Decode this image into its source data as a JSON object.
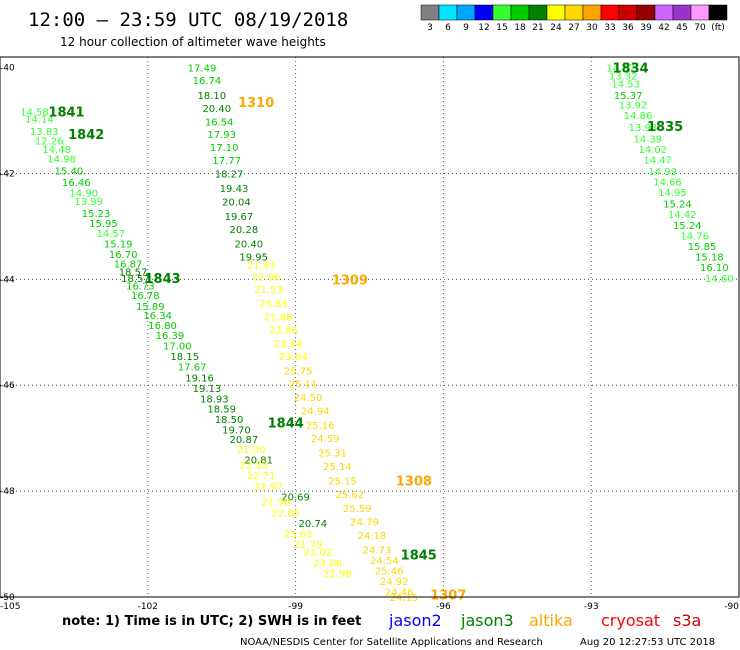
{
  "header": {
    "title": "12:00 — 23:59 UTC 08/19/2018",
    "subtitle": "12 hour collection of altimeter wave heights"
  },
  "colorbar": {
    "unit": "(ft)",
    "swatches": [
      {
        "color": "#808080",
        "label": "3"
      },
      {
        "color": "#00e5ff",
        "label": "6"
      },
      {
        "color": "#00a6ff",
        "label": "9"
      },
      {
        "color": "#0000ff",
        "label": "12"
      },
      {
        "color": "#33ff33",
        "label": "15"
      },
      {
        "color": "#00cc00",
        "label": "18"
      },
      {
        "color": "#008000",
        "label": "21"
      },
      {
        "color": "#ffff00",
        "label": "24"
      },
      {
        "color": "#ffd700",
        "label": "27"
      },
      {
        "color": "#ffa500",
        "label": "30"
      },
      {
        "color": "#ff0000",
        "label": "33"
      },
      {
        "color": "#cc0000",
        "label": "36"
      },
      {
        "color": "#990000",
        "label": "39"
      },
      {
        "color": "#cc66ff",
        "label": "42"
      },
      {
        "color": "#9933cc",
        "label": "45"
      },
      {
        "color": "#ff99ff",
        "label": "70"
      },
      {
        "color": "#000000",
        "label": ""
      }
    ]
  },
  "note": "note:  1) Time is in UTC;  2) SWH is in feet",
  "satellites": [
    {
      "name": "jason2",
      "color": "#0000ff"
    },
    {
      "name": "jason3",
      "color": "#008000"
    },
    {
      "name": "altika",
      "color": "#ffa500"
    },
    {
      "name": "cryosat",
      "color": "#ff0000"
    },
    {
      "name": "s3a",
      "color": "#cc0000"
    }
  ],
  "footer": {
    "credit": "NOAA/NESDIS Center for Satellite Applications and Research",
    "timestamp": "Aug 20 12:27:53 UTC 2018"
  },
  "chart_data": {
    "type": "scatter",
    "xlim": [
      -105,
      -90
    ],
    "ylim": [
      -50,
      -39.8
    ],
    "grid": true,
    "x_ticks": [
      "-105",
      "-102",
      "-99",
      "-96",
      "-93",
      "-90"
    ],
    "y_ticks": [
      "-40",
      "-42",
      "-44",
      "-46",
      "-48",
      "-50"
    ],
    "time_labels": [
      {
        "text": "1841",
        "x": -103.65,
        "y": -40.83,
        "color": "#008000"
      },
      {
        "text": "1842",
        "x": -103.25,
        "y": -41.25,
        "color": "#008000"
      },
      {
        "text": "1843",
        "x": -101.7,
        "y": -43.97,
        "color": "#008000"
      },
      {
        "text": "1844",
        "x": -99.2,
        "y": -46.7,
        "color": "#008000"
      },
      {
        "text": "1845",
        "x": -96.5,
        "y": -49.2,
        "color": "#008000"
      },
      {
        "text": "1834",
        "x": -92.2,
        "y": -40.0,
        "color": "#008000"
      },
      {
        "text": "1835",
        "x": -91.5,
        "y": -41.1,
        "color": "#008000"
      },
      {
        "text": "1310",
        "x": -99.8,
        "y": -40.65,
        "color": "#ffa500"
      },
      {
        "text": "1309",
        "x": -97.9,
        "y": -44.0,
        "color": "#ffa500"
      },
      {
        "text": "1308",
        "x": -96.6,
        "y": -47.8,
        "color": "#ffa500"
      },
      {
        "text": "1307",
        "x": -95.9,
        "y": -49.95,
        "color": "#ffa500"
      }
    ],
    "series": [
      {
        "name": "jason3",
        "points": [
          {
            "x": -104.3,
            "y": -40.83,
            "v": 14.58
          },
          {
            "x": -104.2,
            "y": -40.96,
            "v": 14.14
          },
          {
            "x": -104.1,
            "y": -41.2,
            "v": 13.83
          },
          {
            "x": -104.0,
            "y": -41.38,
            "v": 12.26
          },
          {
            "x": -103.85,
            "y": -41.54,
            "v": 14.48
          },
          {
            "x": -103.75,
            "y": -41.72,
            "v": 14.98
          },
          {
            "x": -103.6,
            "y": -41.94,
            "v": 15.4
          },
          {
            "x": -103.45,
            "y": -42.16,
            "v": 16.46
          },
          {
            "x": -103.3,
            "y": -42.36,
            "v": 14.9
          },
          {
            "x": -103.2,
            "y": -42.52,
            "v": 13.99
          },
          {
            "x": -103.05,
            "y": -42.75,
            "v": 15.23
          },
          {
            "x": -102.9,
            "y": -42.94,
            "v": 15.95
          },
          {
            "x": -102.75,
            "y": -43.12,
            "v": 14.57
          },
          {
            "x": -102.6,
            "y": -43.32,
            "v": 15.19
          },
          {
            "x": -102.5,
            "y": -43.52,
            "v": 16.7
          },
          {
            "x": -102.4,
            "y": -43.7,
            "v": 16.87
          },
          {
            "x": -102.3,
            "y": -43.85,
            "v": 18.57
          },
          {
            "x": -102.25,
            "y": -43.97,
            "v": 18.57
          },
          {
            "x": -102.15,
            "y": -44.12,
            "v": 16.73
          },
          {
            "x": -102.05,
            "y": -44.3,
            "v": 16.78
          },
          {
            "x": -101.95,
            "y": -44.5,
            "v": 15.89
          },
          {
            "x": -101.8,
            "y": -44.67,
            "v": 16.34
          },
          {
            "x": -101.7,
            "y": -44.86,
            "v": 16.8
          },
          {
            "x": -101.55,
            "y": -45.05,
            "v": 16.39
          },
          {
            "x": -101.4,
            "y": -45.25,
            "v": 17.0
          },
          {
            "x": -101.25,
            "y": -45.45,
            "v": 18.15
          },
          {
            "x": -101.1,
            "y": -45.65,
            "v": 17.67
          },
          {
            "x": -100.95,
            "y": -45.85,
            "v": 19.16
          },
          {
            "x": -100.8,
            "y": -46.05,
            "v": 19.13
          },
          {
            "x": -100.65,
            "y": -46.25,
            "v": 18.93
          },
          {
            "x": -100.5,
            "y": -46.44,
            "v": 18.59
          },
          {
            "x": -100.35,
            "y": -46.64,
            "v": 18.5
          },
          {
            "x": -100.2,
            "y": -46.84,
            "v": 19.7
          },
          {
            "x": -100.05,
            "y": -47.02,
            "v": 20.87
          },
          {
            "x": -99.9,
            "y": -47.2,
            "v": 21.0
          },
          {
            "x": -99.75,
            "y": -47.4,
            "v": 20.81
          },
          {
            "x": -99.0,
            "y": -48.1,
            "v": 20.69
          },
          {
            "x": -98.65,
            "y": -48.6,
            "v": 20.74
          },
          {
            "x": -100.9,
            "y": -40.0,
            "v": 17.49
          },
          {
            "x": -100.8,
            "y": -40.23,
            "v": 16.74
          },
          {
            "x": -100.7,
            "y": -40.52,
            "v": 18.1
          },
          {
            "x": -100.6,
            "y": -40.76,
            "v": 20.4
          },
          {
            "x": -100.55,
            "y": -41.02,
            "v": 16.54
          },
          {
            "x": -100.5,
            "y": -41.25,
            "v": 17.93
          },
          {
            "x": -100.45,
            "y": -41.5,
            "v": 17.1
          },
          {
            "x": -100.4,
            "y": -41.75,
            "v": 17.77
          },
          {
            "x": -100.35,
            "y": -42.0,
            "v": 18.27
          },
          {
            "x": -100.25,
            "y": -42.27,
            "v": 19.43
          },
          {
            "x": -100.2,
            "y": -42.53,
            "v": 20.04
          },
          {
            "x": -100.15,
            "y": -42.8,
            "v": 19.67
          },
          {
            "x": -100.05,
            "y": -43.05,
            "v": 20.28
          },
          {
            "x": -99.95,
            "y": -43.32,
            "v": 20.4
          },
          {
            "x": -99.85,
            "y": -43.57,
            "v": 19.95
          },
          {
            "x": -92.4,
            "y": -40.0,
            "v": 14.67
          },
          {
            "x": -92.35,
            "y": -40.15,
            "v": 13.32
          },
          {
            "x": -92.3,
            "y": -40.3,
            "v": 14.53
          },
          {
            "x": -92.25,
            "y": -40.52,
            "v": 15.37
          },
          {
            "x": -92.15,
            "y": -40.7,
            "v": 13.92
          },
          {
            "x": -92.05,
            "y": -40.9,
            "v": 14.86
          },
          {
            "x": -91.95,
            "y": -41.12,
            "v": 13.93
          },
          {
            "x": -91.85,
            "y": -41.34,
            "v": 14.39
          },
          {
            "x": -91.75,
            "y": -41.54,
            "v": 14.02
          },
          {
            "x": -91.65,
            "y": -41.74,
            "v": 14.47
          },
          {
            "x": -91.55,
            "y": -41.95,
            "v": 14.99
          },
          {
            "x": -91.45,
            "y": -42.15,
            "v": 14.66
          },
          {
            "x": -91.35,
            "y": -42.35,
            "v": 14.95
          },
          {
            "x": -91.25,
            "y": -42.57,
            "v": 15.24
          },
          {
            "x": -91.15,
            "y": -42.77,
            "v": 14.42
          },
          {
            "x": -91.05,
            "y": -42.97,
            "v": 15.24
          },
          {
            "x": -90.9,
            "y": -43.17,
            "v": 14.76
          },
          {
            "x": -90.75,
            "y": -43.37,
            "v": 15.85
          },
          {
            "x": -90.6,
            "y": -43.57,
            "v": 15.18
          },
          {
            "x": -90.5,
            "y": -43.77,
            "v": 16.1
          },
          {
            "x": -90.4,
            "y": -43.97,
            "v": 14.6
          }
        ]
      },
      {
        "name": "altika",
        "points": [
          {
            "x": -99.7,
            "y": -43.72,
            "v": 21.93
          },
          {
            "x": -99.6,
            "y": -43.95,
            "v": 22.06
          },
          {
            "x": -99.55,
            "y": -44.18,
            "v": 21.53
          },
          {
            "x": -99.45,
            "y": -44.45,
            "v": 23.83
          },
          {
            "x": -99.35,
            "y": -44.7,
            "v": 21.88
          },
          {
            "x": -99.25,
            "y": -44.95,
            "v": 22.86
          },
          {
            "x": -99.15,
            "y": -45.2,
            "v": 23.44
          },
          {
            "x": -99.05,
            "y": -45.45,
            "v": 23.04
          },
          {
            "x": -98.95,
            "y": -45.72,
            "v": 25.75
          },
          {
            "x": -98.85,
            "y": -45.97,
            "v": 25.11
          },
          {
            "x": -98.75,
            "y": -46.22,
            "v": 24.5
          },
          {
            "x": -98.6,
            "y": -46.48,
            "v": 24.94
          },
          {
            "x": -98.5,
            "y": -46.75,
            "v": 25.16
          },
          {
            "x": -98.4,
            "y": -47.0,
            "v": 24.59
          },
          {
            "x": -98.25,
            "y": -47.27,
            "v": 25.31
          },
          {
            "x": -98.15,
            "y": -47.53,
            "v": 25.14
          },
          {
            "x": -98.05,
            "y": -47.8,
            "v": 25.15
          },
          {
            "x": -97.9,
            "y": -48.05,
            "v": 25.62
          },
          {
            "x": -97.75,
            "y": -48.32,
            "v": 25.59
          },
          {
            "x": -97.6,
            "y": -48.57,
            "v": 24.79
          },
          {
            "x": -97.45,
            "y": -48.83,
            "v": 24.18
          },
          {
            "x": -97.35,
            "y": -49.1,
            "v": 24.73
          },
          {
            "x": -97.2,
            "y": -49.3,
            "v": 24.54
          },
          {
            "x": -97.1,
            "y": -49.5,
            "v": 25.46
          },
          {
            "x": -97.0,
            "y": -49.7,
            "v": 24.92
          },
          {
            "x": -96.9,
            "y": -49.9,
            "v": 24.46
          },
          {
            "x": -96.8,
            "y": -50.0,
            "v": 24.15
          },
          {
            "x": -99.85,
            "y": -47.5,
            "v": 22.35
          },
          {
            "x": -99.7,
            "y": -47.7,
            "v": 22.71
          },
          {
            "x": -99.55,
            "y": -47.9,
            "v": 21.97
          },
          {
            "x": -99.4,
            "y": -48.2,
            "v": 21.98
          },
          {
            "x": -99.2,
            "y": -48.4,
            "v": 22.05
          },
          {
            "x": -98.95,
            "y": -48.8,
            "v": 23.63
          },
          {
            "x": -98.75,
            "y": -49.0,
            "v": 21.79
          },
          {
            "x": -98.55,
            "y": -49.15,
            "v": 23.02
          },
          {
            "x": -98.35,
            "y": -49.35,
            "v": 23.08
          },
          {
            "x": -98.15,
            "y": -49.55,
            "v": 22.98
          }
        ]
      }
    ]
  }
}
